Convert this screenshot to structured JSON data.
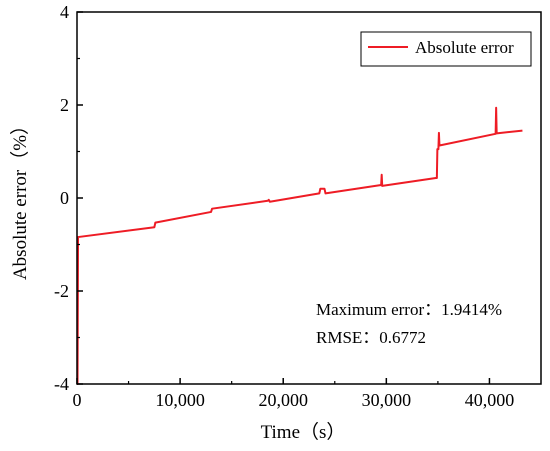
{
  "chart_data": {
    "type": "line",
    "xlabel": "Time（s）",
    "ylabel": "Absolute error（%）",
    "xlim": [
      0,
      45000
    ],
    "ylim": [
      -4,
      4
    ],
    "x_ticks": [
      0,
      10000,
      20000,
      30000,
      40000
    ],
    "x_tick_labels": [
      "0",
      "10,000",
      "20,000",
      "30,000",
      "40,000"
    ],
    "y_ticks": [
      -4,
      -2,
      0,
      2,
      4
    ],
    "y_tick_labels": [
      "-4",
      "-2",
      "0",
      "2",
      "4"
    ],
    "grid": false,
    "legend_position": "top-right",
    "series": [
      {
        "name": "Absolute error",
        "color": "#ee1c25",
        "points": [
          [
            0,
            -4.0
          ],
          [
            50,
            -4.0
          ],
          [
            100,
            -0.84
          ],
          [
            7500,
            -0.63
          ],
          [
            7600,
            -0.53
          ],
          [
            13000,
            -0.3
          ],
          [
            13100,
            -0.23
          ],
          [
            18500,
            -0.06
          ],
          [
            18600,
            -0.04
          ],
          [
            18700,
            -0.08
          ],
          [
            23500,
            0.1
          ],
          [
            23600,
            0.2
          ],
          [
            24000,
            0.2
          ],
          [
            24100,
            0.1
          ],
          [
            29500,
            0.28
          ],
          [
            29550,
            0.5
          ],
          [
            29600,
            0.26
          ],
          [
            34800,
            0.43
          ],
          [
            34900,
            0.43
          ],
          [
            34950,
            1.05
          ],
          [
            35050,
            1.05
          ],
          [
            35100,
            1.4
          ],
          [
            35150,
            1.13
          ],
          [
            40600,
            1.38
          ],
          [
            40650,
            1.94
          ],
          [
            40700,
            1.39
          ],
          [
            43200,
            1.45
          ]
        ]
      }
    ],
    "annotations": [
      "Maximum error：1.9414%",
      "RMSE：0.6772"
    ]
  }
}
